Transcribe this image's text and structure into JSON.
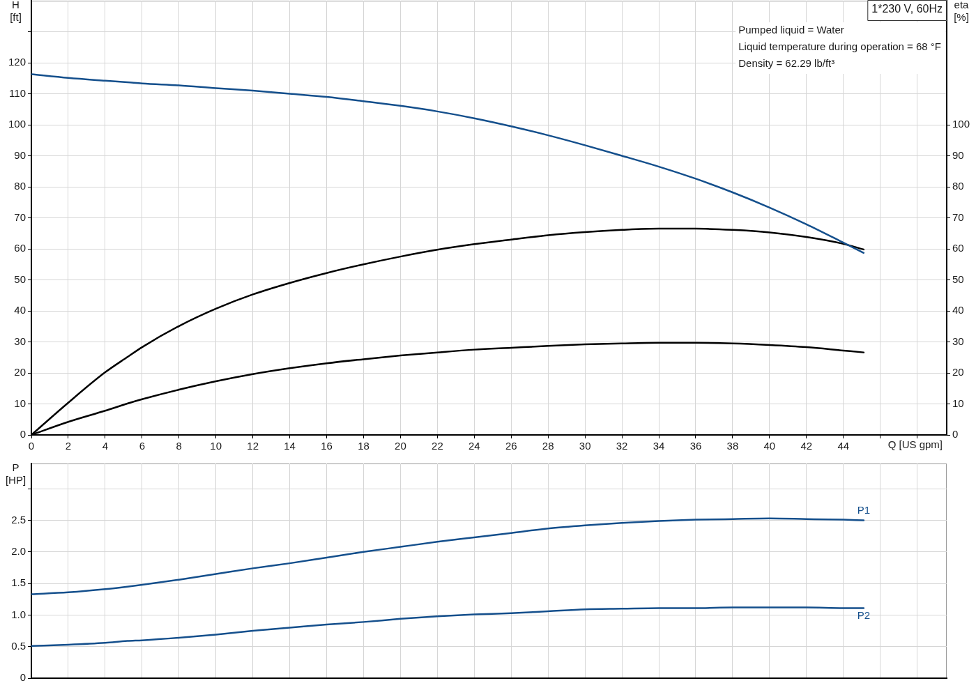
{
  "chart_data": [
    {
      "type": "line",
      "title": "1*230 V, 60Hz",
      "xlabel": "Q [US gpm]",
      "ylabel": "H [ft]",
      "y2label": "eta [%]",
      "annotations": [
        "Pumped liquid = Water",
        "Liquid temperature during operation = 68 °F",
        "Density = 62.29 lb/ft³"
      ],
      "x": [
        0,
        2,
        4,
        5.2,
        6,
        8,
        10,
        12,
        14,
        16,
        18,
        20,
        22,
        24,
        26,
        28,
        30,
        32,
        34,
        36,
        38,
        40,
        42,
        44,
        45.1
      ],
      "series": [
        {
          "color": "#144f8c",
          "values": [
            116.3,
            115.1,
            114.2,
            113.7,
            113.3,
            112.7,
            111.8,
            111.0,
            110.0,
            109.0,
            107.6,
            106.1,
            104.3,
            102.1,
            99.5,
            96.6,
            93.4,
            90.0,
            86.5,
            82.6,
            78.2,
            73.3,
            67.9,
            62.0,
            58.7
          ]
        },
        {
          "color": "#000000",
          "axis": "y2",
          "values": [
            0,
            10.4,
            20.2,
            25.1,
            28.3,
            35.1,
            40.7,
            45.3,
            49.0,
            52.2,
            55.0,
            57.5,
            59.7,
            61.5,
            63.0,
            64.4,
            65.4,
            66.1,
            66.5,
            66.5,
            66.1,
            65.3,
            63.8,
            61.6,
            59.8
          ]
        },
        {
          "color": "#000000",
          "axis": "y2",
          "values": [
            0,
            4.2,
            7.8,
            10.1,
            11.5,
            14.6,
            17.3,
            19.6,
            21.5,
            23.1,
            24.4,
            25.6,
            26.6,
            27.5,
            28.1,
            28.7,
            29.2,
            29.5,
            29.7,
            29.7,
            29.5,
            29.0,
            28.3,
            27.2,
            26.6
          ]
        }
      ],
      "xlim": [
        0,
        49.6
      ],
      "xticks": [
        0,
        2,
        4,
        6,
        8,
        10,
        12,
        14,
        16,
        18,
        20,
        22,
        24,
        26,
        28,
        30,
        32,
        34,
        36,
        38,
        40,
        42,
        44,
        {
          "value": 46,
          "label": null
        },
        {
          "value": 48,
          "label": null
        }
      ],
      "ylim": [
        0,
        140
      ],
      "yticks": [
        0,
        10,
        20,
        30,
        40,
        50,
        60,
        70,
        80,
        90,
        100,
        110,
        120,
        {
          "value": 130,
          "label": null
        }
      ],
      "y2lim": [
        0,
        140
      ],
      "y2ticks": [
        0,
        10,
        20,
        30,
        40,
        50,
        60,
        70,
        80,
        90,
        100
      ],
      "grid": true,
      "marker": "none"
    },
    {
      "type": "line",
      "ylabel": "P [HP]",
      "x": [
        0,
        2,
        4,
        5.2,
        6,
        8,
        10,
        12,
        14,
        16,
        18,
        20,
        22,
        24,
        26,
        28,
        30,
        32,
        34,
        36,
        38,
        40,
        42,
        44,
        45.1
      ],
      "series": [
        {
          "name": "P1",
          "color": "#144f8c",
          "values": [
            1.33,
            1.36,
            1.41,
            1.45,
            1.48,
            1.56,
            1.65,
            1.74,
            1.82,
            1.91,
            2,
            2.08,
            2.16,
            2.23,
            2.3,
            2.37,
            2.42,
            2.46,
            2.49,
            2.51,
            2.52,
            2.53,
            2.52,
            2.51,
            2.5
          ]
        },
        {
          "name": "P2",
          "color": "#144f8c",
          "values": [
            0.51,
            0.53,
            0.56,
            0.59,
            0.6,
            0.64,
            0.69,
            0.75,
            0.8,
            0.85,
            0.89,
            0.94,
            0.98,
            1.01,
            1.03,
            1.06,
            1.09,
            1.1,
            1.11,
            1.11,
            1.12,
            1.12,
            1.12,
            1.11,
            1.11
          ]
        }
      ],
      "xlim": [
        0,
        49.6
      ],
      "xticks": [
        0,
        2,
        4,
        6,
        8,
        10,
        12,
        14,
        16,
        18,
        20,
        22,
        24,
        26,
        28,
        30,
        32,
        34,
        36,
        38,
        40,
        42,
        44,
        46,
        48
      ],
      "ylim": [
        0,
        3.4
      ],
      "yticks": [
        0,
        0.5,
        {
          "value": 1,
          "label": "1.0"
        },
        1.5,
        {
          "value": 2,
          "label": "2.0"
        },
        2.5,
        {
          "value": 3,
          "label": null
        }
      ],
      "tick_labels": "y",
      "grid": true,
      "marker": "none"
    }
  ]
}
